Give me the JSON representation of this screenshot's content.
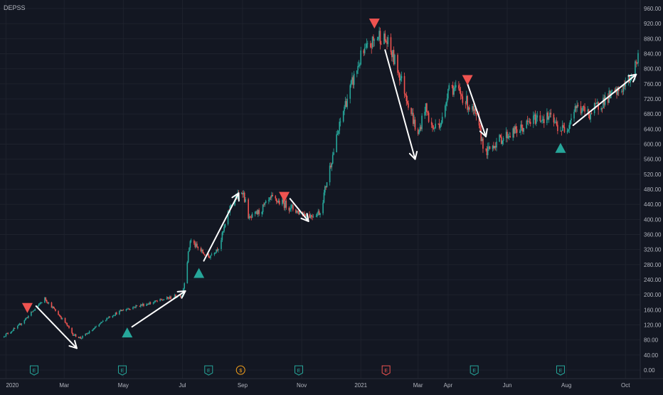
{
  "chart": {
    "symbol": "DEPSS",
    "colors": {
      "background": "#131722",
      "grid": "#1e222d",
      "up": "#26a69a",
      "down": "#ef5350",
      "text": "#b2b5be",
      "arrow": "#ffffff",
      "buy": "#26a69a",
      "sell": "#ef5350",
      "dividend": "#f7a21b"
    }
  },
  "chart_data": {
    "type": "candlestick",
    "title": "",
    "symbol": "DEPSS",
    "ylim": [
      0,
      960
    ],
    "y_ticks": [
      "960.00",
      "920.00",
      "880.00",
      "840.00",
      "800.00",
      "760.00",
      "720.00",
      "680.00",
      "640.00",
      "600.00",
      "560.00",
      "520.00",
      "480.00",
      "440.00",
      "400.00",
      "360.00",
      "320.00",
      "280.00",
      "240.00",
      "200.00",
      "160.00",
      "120.00",
      "80.00",
      "40.00",
      "0.00"
    ],
    "x_ticks": [
      {
        "label": "2020",
        "date": "2020-01-01"
      },
      {
        "label": "Mar",
        "date": "2020-03-01"
      },
      {
        "label": "May",
        "date": "2020-05-01"
      },
      {
        "label": "Jul",
        "date": "2020-07-01"
      },
      {
        "label": "Sep",
        "date": "2020-09-01"
      },
      {
        "label": "Nov",
        "date": "2020-11-01"
      },
      {
        "label": "2021",
        "date": "2021-01-01"
      },
      {
        "label": "Mar",
        "date": "2021-03-01"
      },
      {
        "label": "Apr",
        "date": "2021-04-01"
      },
      {
        "label": "Jun",
        "date": "2021-06-01"
      },
      {
        "label": "Aug",
        "date": "2021-08-01"
      },
      {
        "label": "Oct",
        "date": "2021-10-01"
      }
    ],
    "price_path": [
      [
        "2019-12-28",
        88
      ],
      [
        "2020-01-13",
        115
      ],
      [
        "2020-02-01",
        165
      ],
      [
        "2020-02-10",
        190
      ],
      [
        "2020-02-20",
        160
      ],
      [
        "2020-03-01",
        130
      ],
      [
        "2020-03-10",
        95
      ],
      [
        "2020-03-18",
        85
      ],
      [
        "2020-04-01",
        110
      ],
      [
        "2020-04-15",
        140
      ],
      [
        "2020-05-01",
        160
      ],
      [
        "2020-05-15",
        170
      ],
      [
        "2020-06-01",
        180
      ],
      [
        "2020-06-15",
        190
      ],
      [
        "2020-07-01",
        200
      ],
      [
        "2020-07-09",
        345
      ],
      [
        "2020-07-18",
        320
      ],
      [
        "2020-07-28",
        300
      ],
      [
        "2020-08-08",
        330
      ],
      [
        "2020-08-20",
        440
      ],
      [
        "2020-09-01",
        478
      ],
      [
        "2020-09-08",
        400
      ],
      [
        "2020-09-18",
        420
      ],
      [
        "2020-10-01",
        455
      ],
      [
        "2020-10-15",
        440
      ],
      [
        "2020-10-29",
        420
      ],
      [
        "2020-11-10",
        410
      ],
      [
        "2020-11-20",
        420
      ],
      [
        "2020-12-01",
        550
      ],
      [
        "2020-12-15",
        700
      ],
      [
        "2021-01-01",
        830
      ],
      [
        "2021-01-10",
        860
      ],
      [
        "2021-01-20",
        890
      ],
      [
        "2021-01-28",
        870
      ],
      [
        "2021-02-08",
        800
      ],
      [
        "2021-02-18",
        720
      ],
      [
        "2021-03-01",
        620
      ],
      [
        "2021-03-08",
        700
      ],
      [
        "2021-03-16",
        640
      ],
      [
        "2021-03-28",
        670
      ],
      [
        "2021-04-01",
        760
      ],
      [
        "2021-04-15",
        730
      ],
      [
        "2021-04-28",
        680
      ],
      [
        "2021-05-05",
        620
      ],
      [
        "2021-05-10",
        575
      ],
      [
        "2021-05-18",
        600
      ],
      [
        "2021-06-01",
        625
      ],
      [
        "2021-06-15",
        640
      ],
      [
        "2021-07-01",
        670
      ],
      [
        "2021-07-15",
        670
      ],
      [
        "2021-07-25",
        640
      ],
      [
        "2021-08-01",
        640
      ],
      [
        "2021-08-10",
        700
      ],
      [
        "2021-08-25",
        680
      ],
      [
        "2021-09-10",
        720
      ],
      [
        "2021-09-25",
        740
      ],
      [
        "2021-10-05",
        770
      ],
      [
        "2021-10-14",
        830
      ]
    ],
    "trend_arrows": [
      {
        "from": [
          "2020-02-01",
          170
        ],
        "to": [
          "2020-03-14",
          58
        ]
      },
      {
        "from": [
          "2020-05-10",
          115
        ],
        "to": [
          "2020-07-04",
          210
        ]
      },
      {
        "from": [
          "2020-07-23",
          290
        ],
        "to": [
          "2020-08-28",
          470
        ]
      },
      {
        "from": [
          "2020-10-20",
          455
        ],
        "to": [
          "2020-11-08",
          395
        ]
      },
      {
        "from": [
          "2021-01-26",
          850
        ],
        "to": [
          "2021-02-26",
          560
        ]
      },
      {
        "from": [
          "2021-04-21",
          760
        ],
        "to": [
          "2021-05-10",
          620
        ]
      },
      {
        "from": [
          "2021-08-08",
          650
        ],
        "to": [
          "2021-10-12",
          785
        ]
      }
    ],
    "signals": [
      {
        "type": "sell",
        "date": "2020-01-23",
        "price": 165
      },
      {
        "type": "buy",
        "date": "2020-05-05",
        "price": 100
      },
      {
        "type": "buy",
        "date": "2020-07-18",
        "price": 258
      },
      {
        "type": "sell",
        "date": "2020-10-14",
        "price": 460
      },
      {
        "type": "sell",
        "date": "2021-01-15",
        "price": 920
      },
      {
        "type": "sell",
        "date": "2021-04-21",
        "price": 770
      },
      {
        "type": "buy",
        "date": "2021-07-26",
        "price": 590
      }
    ],
    "event_markers": [
      {
        "label": "E",
        "date": "2020-01-30",
        "kind": "earnings"
      },
      {
        "label": "E",
        "date": "2020-04-30",
        "kind": "earnings"
      },
      {
        "label": "E",
        "date": "2020-07-28",
        "kind": "earnings"
      },
      {
        "label": "$",
        "date": "2020-08-30",
        "kind": "dividend"
      },
      {
        "label": "E",
        "date": "2020-10-29",
        "kind": "earnings"
      },
      {
        "label": "E",
        "date": "2021-01-27",
        "kind": "earnings-selected"
      },
      {
        "label": "E",
        "date": "2021-04-28",
        "kind": "earnings"
      },
      {
        "label": "E",
        "date": "2021-07-26",
        "kind": "earnings"
      }
    ]
  }
}
